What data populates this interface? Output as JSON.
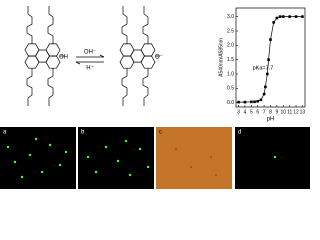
{
  "scheme": {
    "forward": "OH⁻",
    "backward": "H⁺",
    "left_group": "OH",
    "right_group": "O⁻"
  },
  "chart_data": {
    "type": "line",
    "x": [
      3,
      4,
      5,
      5.5,
      6,
      6.5,
      7,
      7.2,
      7.5,
      7.7,
      8,
      8.5,
      9,
      9.5,
      10,
      11,
      12,
      13
    ],
    "series": [
      {
        "color": "#000000",
        "values": [
          0.02,
          0.02,
          0.03,
          0.03,
          0.05,
          0.1,
          0.3,
          0.55,
          1.0,
          1.5,
          2.2,
          2.8,
          2.95,
          3.0,
          3.0,
          3.0,
          3.0,
          3.0
        ]
      }
    ],
    "xlabel": "pH",
    "ylabel": "A540nm/A585nm",
    "annotation": "pKa=7.7",
    "xlim": [
      2.6,
      13.4
    ],
    "xticks": [
      3,
      4,
      5,
      6,
      7,
      8,
      9,
      10,
      11,
      12,
      13
    ],
    "ylim": [
      -0.15,
      3.3
    ],
    "yticks": [
      {
        "value": 0,
        "label": "0.0"
      },
      0.5,
      {
        "value": 1,
        "label": "1.0"
      },
      1.5,
      {
        "value": 2,
        "label": "2.0"
      },
      2.5,
      {
        "value": 3,
        "label": "3.0"
      }
    ]
  },
  "panels": [
    "a",
    "b",
    "c",
    "d"
  ]
}
